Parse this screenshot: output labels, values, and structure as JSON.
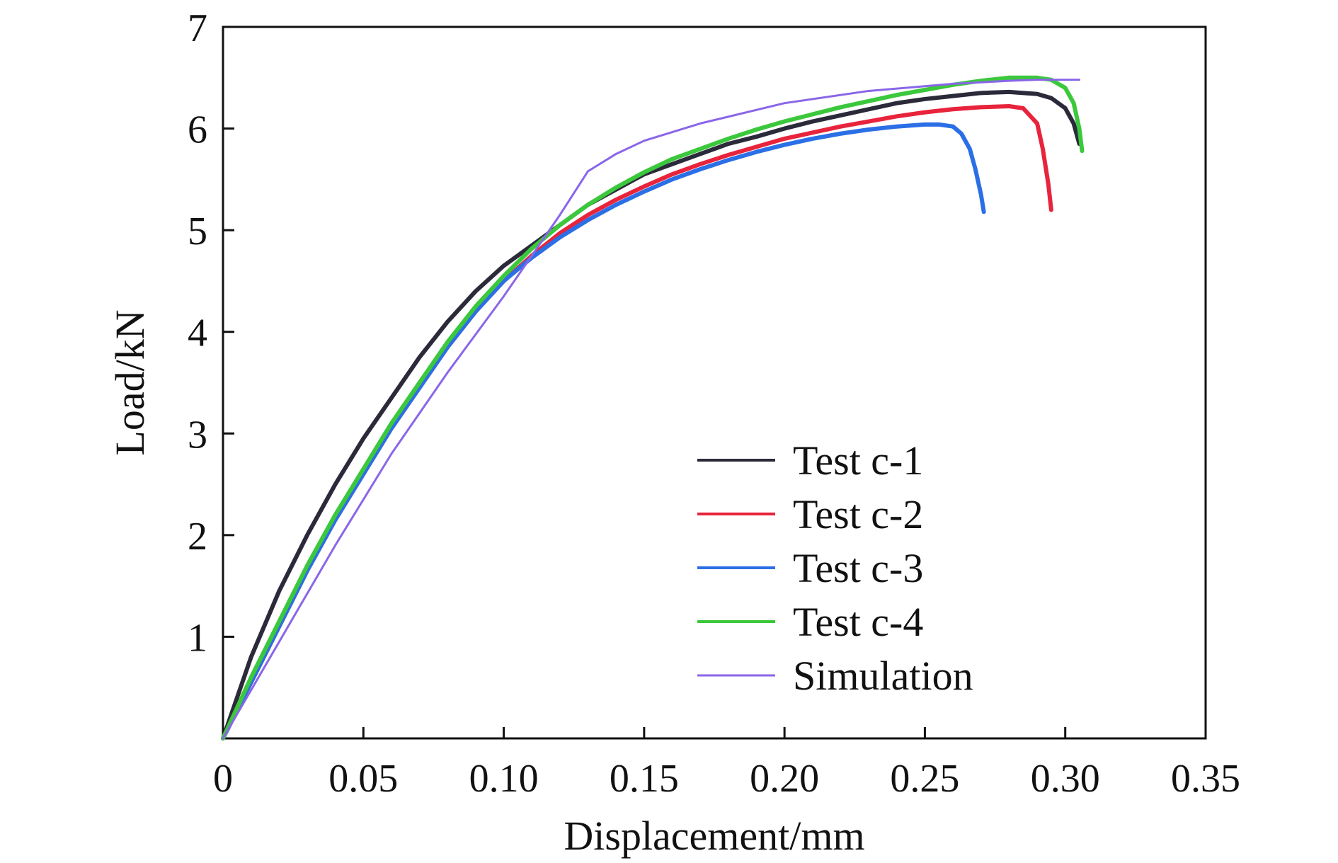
{
  "chart_data": {
    "type": "line",
    "title": "",
    "xlabel": "Displacement/mm",
    "ylabel": "Load/kN",
    "xlim": [
      0,
      0.35
    ],
    "ylim": [
      0,
      7
    ],
    "x_ticks": [
      "0",
      "0.05",
      "0.10",
      "0.15",
      "0.20",
      "0.25",
      "0.30",
      "0.35"
    ],
    "x_tick_values": [
      0,
      0.05,
      0.1,
      0.15,
      0.2,
      0.25,
      0.3,
      0.35
    ],
    "y_ticks": [
      "1",
      "2",
      "3",
      "4",
      "5",
      "6",
      "7"
    ],
    "y_tick_values": [
      1,
      2,
      3,
      4,
      5,
      6,
      7
    ],
    "grid": false,
    "legend_position": "lower-right",
    "series": [
      {
        "name": "Test c-1",
        "color": "#2b2a3a",
        "x": [
          0,
          0.005,
          0.01,
          0.02,
          0.03,
          0.04,
          0.05,
          0.06,
          0.07,
          0.08,
          0.09,
          0.1,
          0.11,
          0.12,
          0.13,
          0.14,
          0.15,
          0.16,
          0.17,
          0.18,
          0.19,
          0.2,
          0.21,
          0.22,
          0.23,
          0.24,
          0.25,
          0.26,
          0.27,
          0.28,
          0.29,
          0.295,
          0.3,
          0.303,
          0.305
        ],
        "y": [
          0,
          0.4,
          0.8,
          1.45,
          2.0,
          2.5,
          2.95,
          3.35,
          3.75,
          4.1,
          4.4,
          4.65,
          4.85,
          5.05,
          5.25,
          5.4,
          5.55,
          5.65,
          5.75,
          5.85,
          5.92,
          6.0,
          6.07,
          6.13,
          6.19,
          6.25,
          6.29,
          6.32,
          6.35,
          6.36,
          6.34,
          6.3,
          6.2,
          6.05,
          5.85
        ]
      },
      {
        "name": "Test c-2",
        "color": "#e8243c",
        "x": [
          0,
          0.01,
          0.02,
          0.03,
          0.04,
          0.05,
          0.06,
          0.07,
          0.08,
          0.09,
          0.1,
          0.11,
          0.12,
          0.13,
          0.14,
          0.15,
          0.16,
          0.17,
          0.18,
          0.19,
          0.2,
          0.21,
          0.22,
          0.23,
          0.24,
          0.25,
          0.26,
          0.27,
          0.28,
          0.285,
          0.29,
          0.292,
          0.294,
          0.295
        ],
        "y": [
          0,
          0.55,
          1.1,
          1.65,
          2.15,
          2.6,
          3.05,
          3.45,
          3.85,
          4.2,
          4.5,
          4.75,
          4.97,
          5.15,
          5.3,
          5.43,
          5.55,
          5.65,
          5.74,
          5.82,
          5.9,
          5.96,
          6.02,
          6.07,
          6.12,
          6.16,
          6.19,
          6.21,
          6.22,
          6.2,
          6.05,
          5.8,
          5.45,
          5.2
        ]
      },
      {
        "name": "Test c-3",
        "color": "#2b6fe6",
        "x": [
          0,
          0.01,
          0.02,
          0.03,
          0.04,
          0.05,
          0.06,
          0.07,
          0.08,
          0.09,
          0.1,
          0.11,
          0.12,
          0.13,
          0.14,
          0.15,
          0.16,
          0.17,
          0.18,
          0.19,
          0.2,
          0.21,
          0.22,
          0.23,
          0.24,
          0.25,
          0.255,
          0.26,
          0.263,
          0.266,
          0.268,
          0.27,
          0.271
        ],
        "y": [
          0,
          0.55,
          1.1,
          1.65,
          2.15,
          2.6,
          3.05,
          3.45,
          3.85,
          4.2,
          4.5,
          4.73,
          4.93,
          5.1,
          5.25,
          5.38,
          5.5,
          5.6,
          5.69,
          5.77,
          5.84,
          5.9,
          5.95,
          5.99,
          6.02,
          6.04,
          6.04,
          6.02,
          5.95,
          5.8,
          5.6,
          5.35,
          5.18
        ]
      },
      {
        "name": "Test c-4",
        "color": "#3cc83c",
        "x": [
          0,
          0.01,
          0.02,
          0.03,
          0.04,
          0.05,
          0.06,
          0.07,
          0.08,
          0.09,
          0.1,
          0.11,
          0.12,
          0.13,
          0.14,
          0.15,
          0.16,
          0.17,
          0.18,
          0.19,
          0.2,
          0.21,
          0.22,
          0.23,
          0.24,
          0.25,
          0.26,
          0.27,
          0.28,
          0.29,
          0.295,
          0.3,
          0.303,
          0.305,
          0.306
        ],
        "y": [
          0,
          0.6,
          1.15,
          1.7,
          2.2,
          2.65,
          3.1,
          3.5,
          3.9,
          4.25,
          4.55,
          4.82,
          5.05,
          5.25,
          5.42,
          5.57,
          5.7,
          5.8,
          5.9,
          5.99,
          6.07,
          6.14,
          6.21,
          6.27,
          6.33,
          6.38,
          6.43,
          6.47,
          6.5,
          6.5,
          6.48,
          6.4,
          6.25,
          6.0,
          5.78
        ]
      },
      {
        "name": "Simulation",
        "color": "#8a66e8",
        "x": [
          0,
          0.02,
          0.04,
          0.06,
          0.08,
          0.1,
          0.12,
          0.13,
          0.14,
          0.15,
          0.17,
          0.2,
          0.23,
          0.26,
          0.28,
          0.29,
          0.3,
          0.305
        ],
        "y": [
          0,
          0.95,
          1.9,
          2.8,
          3.6,
          4.35,
          5.15,
          5.58,
          5.75,
          5.88,
          6.05,
          6.25,
          6.37,
          6.44,
          6.47,
          6.48,
          6.48,
          6.48
        ]
      }
    ]
  }
}
